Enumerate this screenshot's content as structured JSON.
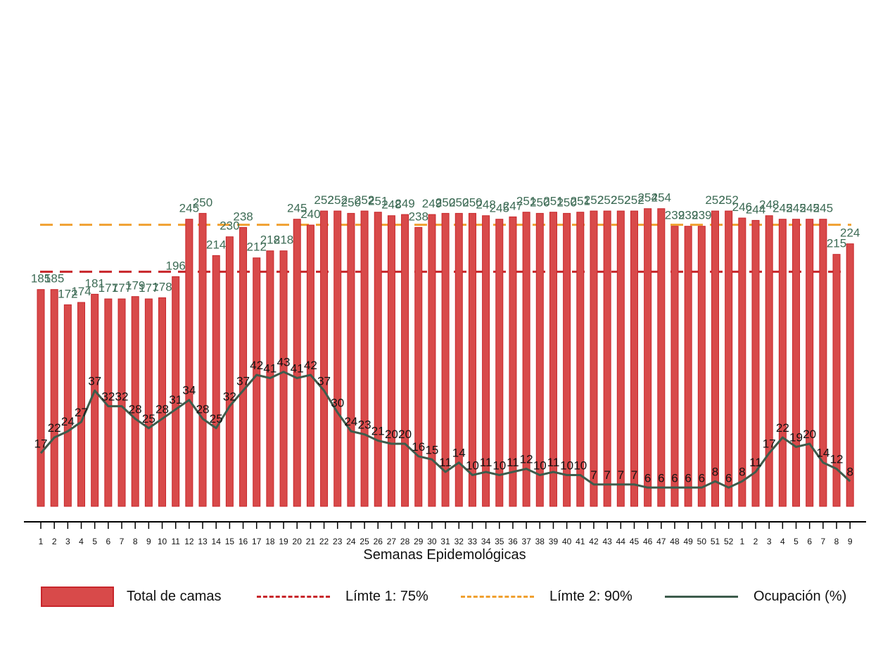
{
  "chart_data": {
    "type": "bar",
    "xlabel": "Semanas Epidemológicas",
    "categories": [
      "1",
      "2",
      "3",
      "4",
      "5",
      "6",
      "7",
      "8",
      "9",
      "10",
      "11",
      "12",
      "13",
      "14",
      "15",
      "16",
      "17",
      "18",
      "19",
      "20",
      "21",
      "22",
      "23",
      "24",
      "25",
      "26",
      "27",
      "28",
      "29",
      "30",
      "31",
      "32",
      "33",
      "34",
      "35",
      "36",
      "37",
      "38",
      "39",
      "40",
      "41",
      "42",
      "43",
      "44",
      "45",
      "46",
      "47",
      "48",
      "49",
      "50",
      "51",
      "52",
      "1",
      "2",
      "3",
      "4",
      "5",
      "6",
      "7",
      "8",
      "9"
    ],
    "series": [
      {
        "name": "Total de camas",
        "type": "bar",
        "color": "#d84a4a",
        "label_color": "#3d6b55",
        "values": [
          185,
          185,
          172,
          174,
          181,
          177,
          177,
          179,
          177,
          178,
          196,
          245,
          250,
          214,
          230,
          238,
          212,
          218,
          218,
          245,
          240,
          252,
          252,
          250,
          252,
          251,
          248,
          249,
          238,
          249,
          250,
          250,
          250,
          248,
          245,
          247,
          251,
          250,
          251,
          250,
          251,
          252,
          252,
          252,
          252,
          254,
          254,
          239,
          239,
          239,
          252,
          252,
          246,
          244,
          248,
          245,
          245,
          245,
          245,
          215,
          224
        ]
      },
      {
        "name": "Límte 1: 75%",
        "type": "line",
        "style": "dashed",
        "color": "#c8262b",
        "value": 75
      },
      {
        "name": "Límte 2: 90%",
        "type": "line",
        "style": "dashed",
        "color": "#f0a030",
        "value": 90
      },
      {
        "name": "Ocupación (%)",
        "type": "line",
        "color": "#3d5c4c",
        "label_color": "#111111",
        "values": [
          17,
          22,
          24,
          27,
          37,
          32,
          32,
          28,
          25,
          28,
          31,
          34,
          28,
          25,
          32,
          37,
          42,
          41,
          43,
          41,
          42,
          37,
          30,
          24,
          23,
          21,
          20,
          20,
          16,
          15,
          11,
          14,
          10,
          11,
          10,
          11,
          12,
          10,
          11,
          10,
          10,
          7,
          7,
          7,
          7,
          6,
          6,
          6,
          6,
          6,
          8,
          6,
          8,
          11,
          17,
          22,
          19,
          20,
          14,
          12,
          8
        ]
      }
    ],
    "legend_position": "bottom",
    "grid": false
  }
}
